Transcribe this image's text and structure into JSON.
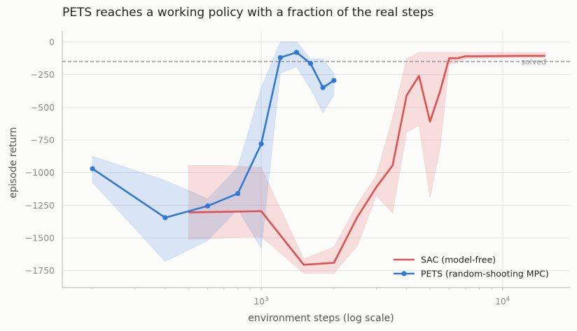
{
  "chart_data": {
    "type": "line",
    "title": "PETS reaches a working policy with a fraction of the real steps",
    "xlabel": "environment steps (log scale)",
    "ylabel": "episode return",
    "x_scale": "log",
    "xlim": [
      150,
      19000
    ],
    "ylim": [
      -1880,
      85
    ],
    "x_ticks": [
      {
        "value": 1000,
        "base": "10",
        "exp": "3"
      },
      {
        "value": 10000,
        "base": "10",
        "exp": "4"
      }
    ],
    "y_ticks": [
      0,
      -250,
      -500,
      -750,
      -1000,
      -1250,
      -1500,
      -1750
    ],
    "grid": true,
    "legend_position": "lower-right",
    "threshold": {
      "value": -150,
      "label": "solved",
      "color": "#8a8a8a"
    },
    "series": [
      {
        "name": "SAC (model-free)",
        "color": "#e05050",
        "marker": false,
        "x": [
          500,
          700,
          1000,
          1500,
          2000,
          2500,
          3000,
          3500,
          4000,
          4500,
          5000,
          5500,
          6000,
          6500,
          7000,
          8000,
          10000,
          12000,
          15000
        ],
        "y": [
          -1305,
          -1300,
          -1295,
          -1705,
          -1690,
          -1340,
          -1110,
          -945,
          -410,
          -260,
          -610,
          -380,
          -125,
          -125,
          -110,
          -110,
          -108,
          -107,
          -107
        ],
        "lower": [
          -1510,
          -1500,
          -1490,
          -1770,
          -1770,
          -1560,
          -1175,
          -1310,
          -690,
          -640,
          -1190,
          -820,
          -170,
          -160,
          -130,
          -125,
          -122,
          -120,
          -120
        ],
        "upper": [
          -945,
          -945,
          -960,
          -1660,
          -1570,
          -1240,
          -1020,
          -580,
          -130,
          -80,
          -80,
          -80,
          -80,
          -80,
          -80,
          -80,
          -80,
          -80,
          -80
        ]
      },
      {
        "name": "PETS (random-shooting MPC)",
        "color": "#2f78d4",
        "marker": true,
        "x": [
          200,
          400,
          600,
          800,
          1000,
          1200,
          1400,
          1600,
          1800,
          2000
        ],
        "y": [
          -970,
          -1345,
          -1255,
          -1160,
          -780,
          -120,
          -80,
          -165,
          -350,
          -295
        ],
        "lower": [
          -1075,
          -1680,
          -1520,
          -1280,
          -1580,
          -240,
          -190,
          -360,
          -540,
          -410
        ],
        "upper": [
          -875,
          -1060,
          -1200,
          -960,
          -350,
          0,
          0,
          -130,
          -130,
          -240
        ]
      }
    ]
  }
}
